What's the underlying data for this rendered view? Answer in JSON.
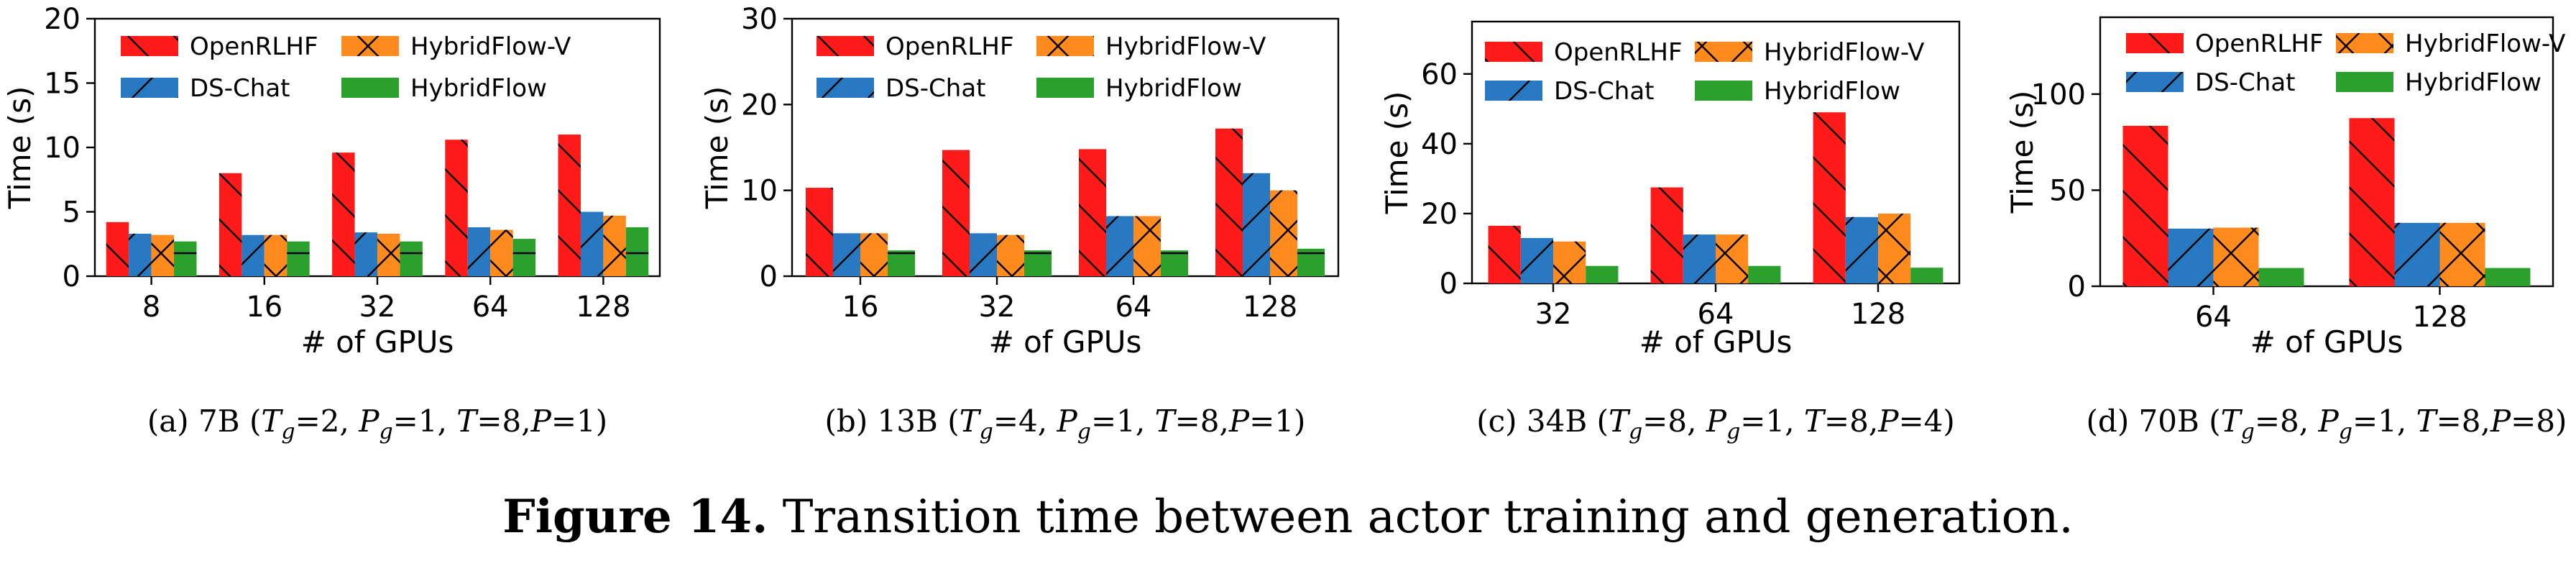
{
  "legend": [
    "OpenRLHF",
    "HybridFlow-V",
    "DS-Chat",
    "HybridFlow"
  ],
  "colors": {
    "OpenRLHF": "#ff1a1a",
    "DS-Chat": "#2878c2",
    "HybridFlow-V": "#ff8a1e",
    "HybridFlow": "#2ca02c"
  },
  "hatches": {
    "OpenRLHF": "back",
    "DS-Chat": "fwd",
    "HybridFlow-V": "cross",
    "HybridFlow": "horiz"
  },
  "caption": {
    "label": "Figure 14.",
    "text": " Transition time between actor training and generation."
  },
  "chart_data": [
    {
      "type": "bar",
      "subcaption": "(a)  7B (Tg=2, Pg=1, T=8,P=1)",
      "xlabel": "# of GPUs",
      "ylabel": "Time (s)",
      "categories": [
        "8",
        "16",
        "32",
        "64",
        "128"
      ],
      "ylim": [
        0,
        20
      ],
      "yticks": [
        0,
        5,
        10,
        15,
        20
      ],
      "series": [
        {
          "name": "OpenRLHF",
          "values": [
            4.2,
            8.0,
            9.6,
            10.6,
            11.0
          ]
        },
        {
          "name": "DS-Chat",
          "values": [
            3.3,
            3.2,
            3.4,
            3.8,
            5.0
          ]
        },
        {
          "name": "HybridFlow-V",
          "values": [
            3.2,
            3.2,
            3.3,
            3.6,
            4.7
          ]
        },
        {
          "name": "HybridFlow",
          "values": [
            2.7,
            2.7,
            2.7,
            2.9,
            3.8
          ]
        }
      ]
    },
    {
      "type": "bar",
      "subcaption": "(b)  13B (Tg=4, Pg=1, T=8,P=1)",
      "xlabel": "# of GPUs",
      "ylabel": "Time (s)",
      "categories": [
        "16",
        "32",
        "64",
        "128"
      ],
      "ylim": [
        0,
        30
      ],
      "yticks": [
        0,
        10,
        20,
        30
      ],
      "series": [
        {
          "name": "OpenRLHF",
          "values": [
            10.3,
            14.7,
            14.8,
            17.2
          ]
        },
        {
          "name": "DS-Chat",
          "values": [
            5.0,
            5.0,
            7.0,
            12.0
          ]
        },
        {
          "name": "HybridFlow-V",
          "values": [
            5.0,
            4.8,
            7.0,
            10.0
          ]
        },
        {
          "name": "HybridFlow",
          "values": [
            3.0,
            3.0,
            3.0,
            3.2
          ]
        }
      ]
    },
    {
      "type": "bar",
      "subcaption": "(c)  34B (Tg=8, Pg=1, T=8,P=4)",
      "xlabel": "# of GPUs",
      "ylabel": "Time (s)",
      "categories": [
        "32",
        "64",
        "128"
      ],
      "ylim": [
        0,
        75
      ],
      "yticks": [
        0,
        20,
        40,
        60
      ],
      "series": [
        {
          "name": "OpenRLHF",
          "values": [
            16.5,
            27.5,
            49.0
          ]
        },
        {
          "name": "DS-Chat",
          "values": [
            13.0,
            14.0,
            19.0
          ]
        },
        {
          "name": "HybridFlow-V",
          "values": [
            12.0,
            14.0,
            20.0
          ]
        },
        {
          "name": "HybridFlow",
          "values": [
            5.0,
            5.0,
            4.5
          ]
        }
      ]
    },
    {
      "type": "bar",
      "subcaption": "(d)  70B (Tg=8, Pg=1, T=8,P=8)",
      "xlabel": "# of GPUs",
      "ylabel": "Time (s)",
      "categories": [
        "64",
        "128"
      ],
      "ylim": [
        0,
        140
      ],
      "yticks": [
        0,
        50,
        100
      ],
      "series": [
        {
          "name": "OpenRLHF",
          "values": [
            83.5,
            87.5
          ]
        },
        {
          "name": "DS-Chat",
          "values": [
            30.0,
            33.0
          ]
        },
        {
          "name": "HybridFlow-V",
          "values": [
            30.5,
            33.0
          ]
        },
        {
          "name": "HybridFlow",
          "values": [
            9.5,
            9.5
          ]
        }
      ]
    }
  ]
}
